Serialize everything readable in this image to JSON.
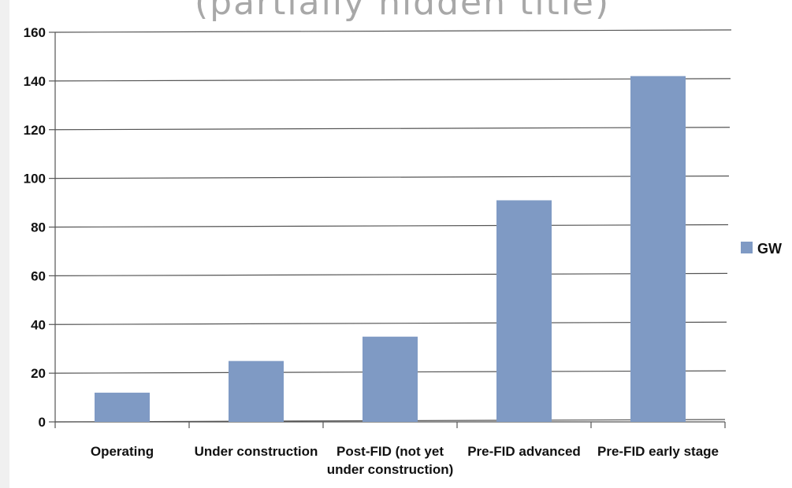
{
  "top_text": "(partially hidden title)",
  "chart_data": {
    "type": "bar",
    "categories": [
      [
        "Operating"
      ],
      [
        "Under construction"
      ],
      [
        "Post-FID (not yet",
        "under construction)"
      ],
      [
        "Pre-FID advanced"
      ],
      [
        "Pre-FID early stage"
      ]
    ],
    "series": [
      {
        "name": "GW",
        "values": [
          12,
          25,
          35,
          91,
          142
        ]
      }
    ],
    "ylim": [
      0,
      160
    ],
    "yticks": [
      0,
      20,
      40,
      60,
      80,
      100,
      120,
      140,
      160
    ],
    "grid": true,
    "legend": "right",
    "colors": {
      "bar": "#7f9ac4",
      "grid": "#555555",
      "axis": "#555555"
    }
  }
}
